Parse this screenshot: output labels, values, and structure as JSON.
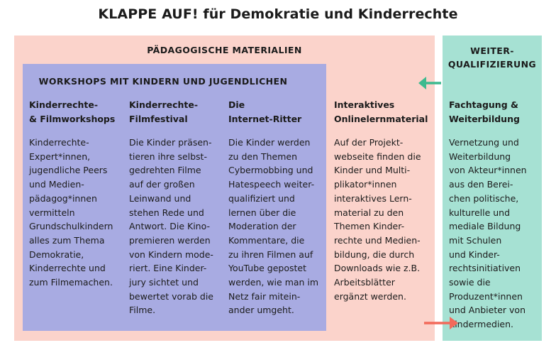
{
  "title": "KLAPPE AUF! für Demokratie und Kinderrechte",
  "paedagogische": {
    "title": "PÄDAGOGISCHE MATERIALIEN",
    "workshops": {
      "title": "WORKSHOPS MIT KINDERN UND JUGENDLICHEN",
      "columns": [
        {
          "heading": "Kinderrechte-\n& Filmworkshops",
          "body": "Kinderrechte-\nExpert*innen,\njugendliche Peers\nund Medien-\npädagog*innen\nvermitteln\nGrundschulkindern\nalles zum Thema\nDemokratie,\nKinderrechte und\nzum Filmemachen."
        },
        {
          "heading": "Kinderrechte-\nFilmfestival",
          "body": "Die Kinder präsen-\ntieren ihre selbst-\ngedrehten Filme\nauf der großen\nLeinwand und\nstehen Rede und\nAntwort. Die Kino-\npremieren werden\nvon Kindern mode-\nriert. Eine Kinder-\njury sichtet und\nbewertet vorab die\nFilme."
        },
        {
          "heading": "Die\nInternet-Ritter",
          "body": "Die Kinder werden\nzu den Themen\nCybermobbing und\nHatespeech weiter-\nqualifiziert und\nlernen über die\nModeration der\nKommentare, die\nzu ihren Filmen auf\nYouTube gepostet\nwerden, wie man im\nNetz fair mitein-\nander umgeht."
        }
      ]
    },
    "interaktiv": {
      "heading": "Interaktives\nOnlinelernmaterial",
      "body": "Auf der Projekt-\nwebseite finden die\nKinder und Multi-\nplikator*innen\ninteraktives Lern-\nmaterial zu den\nThemen Kinder-\nrechte und Medien-\nbildung, die durch\nDownloads wie z.B.\nArbeitsblätter\nergänzt werden."
    }
  },
  "weiter": {
    "title": "WEITER-\nQUALIFIZIERUNG",
    "heading": "Fachtagung &\nWeiterbildung",
    "body": "Vernetzung und\nWeiterbildung\nvon Akteur*innen\naus den Berei-\nchen politische,\nkulturelle und\nmediale Bildung\nmit Schulen\nund Kinder-\nrechtsinitiativen\nsowie die\nProduzent*innen\nund Anbieter von\nKindermedien."
  },
  "colors": {
    "pink": "#fbd3cb",
    "green": "#a6e1d3",
    "blue": "#a8abe2",
    "arrow_green": "#3dba8f",
    "arrow_red": "#f26a5b"
  }
}
